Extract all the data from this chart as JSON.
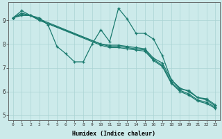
{
  "xlabel": "Humidex (Indice chaleur)",
  "bg_color": "#cceaea",
  "line_color": "#1a7a6e",
  "grid_color": "#aad4d4",
  "xlim": [
    -0.5,
    23.5
  ],
  "ylim": [
    4.8,
    9.75
  ],
  "xticks": [
    0,
    1,
    2,
    3,
    4,
    5,
    6,
    7,
    8,
    9,
    10,
    11,
    12,
    13,
    14,
    15,
    16,
    17,
    18,
    19,
    20,
    21,
    22,
    23
  ],
  "yticks": [
    5,
    6,
    7,
    8,
    9
  ],
  "line1_x": [
    0,
    1,
    2,
    3,
    4,
    5,
    6,
    7,
    8,
    9,
    10,
    11,
    12,
    13,
    14,
    15,
    16,
    17,
    18,
    19,
    20,
    21,
    22,
    23
  ],
  "line1_y": [
    9.1,
    9.4,
    9.2,
    9.1,
    8.8,
    7.9,
    7.6,
    7.25,
    7.25,
    8.0,
    8.6,
    8.1,
    9.5,
    9.05,
    8.45,
    8.45,
    8.2,
    7.5,
    6.5,
    6.1,
    6.05,
    5.75,
    5.7,
    5.45
  ],
  "line2_x": [
    0,
    1,
    2,
    3,
    10,
    11,
    12,
    13,
    14,
    15,
    16,
    17,
    18,
    19,
    20,
    21,
    22,
    23
  ],
  "line2_y": [
    9.1,
    9.3,
    9.2,
    9.0,
    8.0,
    7.95,
    7.95,
    7.9,
    7.85,
    7.8,
    7.4,
    7.2,
    6.5,
    6.15,
    6.0,
    5.75,
    5.65,
    5.4
  ],
  "line3_x": [
    0,
    1,
    2,
    3,
    10,
    11,
    12,
    13,
    14,
    15,
    16,
    17,
    18,
    19,
    20,
    21,
    22,
    23
  ],
  "line3_y": [
    9.1,
    9.25,
    9.2,
    9.05,
    8.0,
    7.9,
    7.9,
    7.85,
    7.8,
    7.75,
    7.35,
    7.1,
    6.4,
    6.05,
    5.9,
    5.65,
    5.55,
    5.35
  ],
  "line4_x": [
    0,
    1,
    2,
    3,
    10,
    11,
    12,
    13,
    14,
    15,
    16,
    17,
    18,
    19,
    20,
    21,
    22,
    23
  ],
  "line4_y": [
    9.1,
    9.2,
    9.2,
    9.0,
    7.95,
    7.85,
    7.85,
    7.8,
    7.75,
    7.7,
    7.3,
    7.05,
    6.35,
    6.0,
    5.85,
    5.6,
    5.5,
    5.3
  ]
}
